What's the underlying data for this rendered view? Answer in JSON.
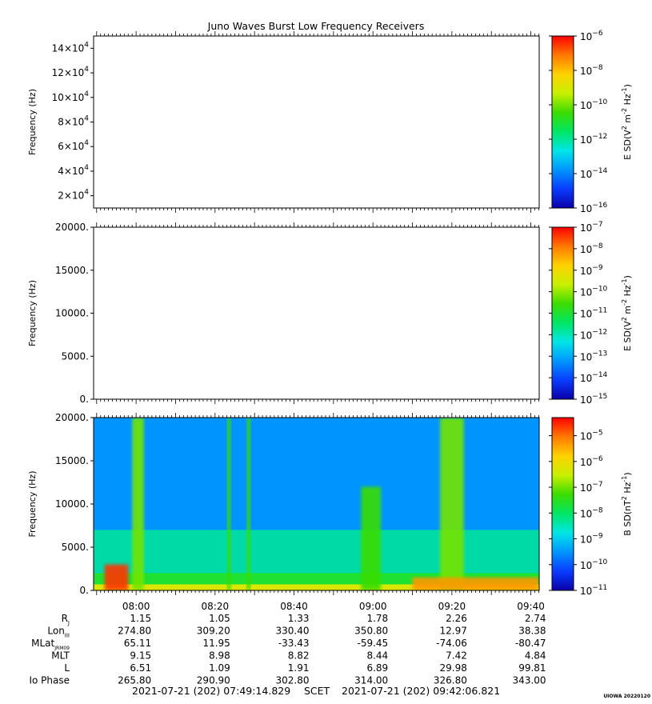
{
  "title": "Juno Waves Burst Low Frequency Receivers",
  "colors": {
    "colormap": [
      "#0a00a8",
      "#0a3cff",
      "#0096ff",
      "#00e6e6",
      "#00e664",
      "#3cdc00",
      "#c8f000",
      "#ffd200",
      "#ff7800",
      "#ff0000"
    ],
    "grid": "#000000"
  },
  "panels": [
    {
      "id": "panel-1",
      "type": "heatmap",
      "ylabel": "Frequency (Hz)",
      "yticks": [
        {
          "value": 20000,
          "mant": "2",
          "exp": "4"
        },
        {
          "value": 40000,
          "mant": "4",
          "exp": "4"
        },
        {
          "value": 60000,
          "mant": "6",
          "exp": "4"
        },
        {
          "value": 80000,
          "mant": "8",
          "exp": "4"
        },
        {
          "value": 100000,
          "mant": "10",
          "exp": "4"
        },
        {
          "value": 120000,
          "mant": "12",
          "exp": "4"
        },
        {
          "value": 140000,
          "mant": "14",
          "exp": "4"
        }
      ],
      "ylim": [
        10000,
        150000
      ],
      "data_present": false,
      "colorbar": {
        "label_base": "E SD",
        "units_html": "(V² m⁻² Hz⁻¹)",
        "scale": "log",
        "exp_range": [
          -16,
          -6
        ],
        "ticks": [
          -6,
          -8,
          -10,
          -12,
          -14,
          -16
        ]
      }
    },
    {
      "id": "panel-2",
      "type": "heatmap",
      "ylabel": "Frequency (Hz)",
      "yticks": [
        {
          "value": 0,
          "text": "0."
        },
        {
          "value": 5000,
          "text": "5000."
        },
        {
          "value": 10000,
          "text": "10000."
        },
        {
          "value": 15000,
          "text": "15000."
        },
        {
          "value": 20000,
          "text": "20000."
        }
      ],
      "ylim": [
        0,
        20000
      ],
      "data_present": false,
      "colorbar": {
        "label_base": "E SD",
        "scale": "log",
        "exp_range": [
          -15,
          -7
        ],
        "ticks": [
          -7,
          -8,
          -9,
          -10,
          -11,
          -12,
          -13,
          -14,
          -15
        ]
      }
    },
    {
      "id": "panel-3",
      "type": "heatmap",
      "ylabel": "Frequency (Hz)",
      "yticks": [
        {
          "value": 0,
          "text": "0."
        },
        {
          "value": 5000,
          "text": "5000."
        },
        {
          "value": 10000,
          "text": "10000."
        },
        {
          "value": 15000,
          "text": "15000."
        },
        {
          "value": 20000,
          "text": "20000."
        }
      ],
      "ylim": [
        0,
        20000
      ],
      "data_present": true,
      "background_level": 0.22,
      "noise_floor_hz": 7000,
      "intensifications": [
        {
          "start": "07:52",
          "end": "07:58",
          "level": 0.95,
          "fmax": 3000
        },
        {
          "start": "07:59",
          "end": "08:02",
          "level": 0.6,
          "fmax": 20000
        },
        {
          "start": "08:23",
          "end": "08:24",
          "level": 0.55,
          "fmax": 20000
        },
        {
          "start": "08:28",
          "end": "08:29",
          "level": 0.55,
          "fmax": 20000
        },
        {
          "start": "08:57",
          "end": "09:02",
          "level": 0.55,
          "fmax": 12000
        },
        {
          "start": "09:17",
          "end": "09:23",
          "level": 0.6,
          "fmax": 20000
        },
        {
          "start": "09:10",
          "end": "09:42",
          "level": 0.85,
          "fmax": 1500
        }
      ],
      "colorbar": {
        "label_base": "B SD",
        "scale": "log",
        "exp_range": [
          -11,
          -4.3
        ],
        "ticks": [
          -5,
          -6,
          -7,
          -8,
          -9,
          -10,
          -11
        ]
      }
    }
  ],
  "xaxis": {
    "start": "07:49:14",
    "end": "09:42:07",
    "ticks": [
      "08:00",
      "08:20",
      "08:40",
      "09:00",
      "09:20",
      "09:40"
    ]
  },
  "ephemeris": [
    {
      "label": "R",
      "sub": "J",
      "values": [
        "1.15",
        "1.05",
        "1.33",
        "1.78",
        "2.26",
        "2.74"
      ]
    },
    {
      "label": "Lon",
      "sub": "III",
      "values": [
        "274.80",
        "309.20",
        "330.40",
        "350.80",
        "12.97",
        "38.38"
      ]
    },
    {
      "label": "MLat",
      "sub": "JRM09",
      "values": [
        "65.11",
        "11.95",
        "-33.43",
        "-59.45",
        "-74.06",
        "-80.47"
      ]
    },
    {
      "label": "MLT",
      "sub": "",
      "values": [
        "9.15",
        "8.98",
        "8.82",
        "8.44",
        "7.42",
        "4.84"
      ]
    },
    {
      "label": "L",
      "sub": "",
      "values": [
        "6.51",
        "1.09",
        "1.91",
        "6.89",
        "29.98",
        "99.81"
      ]
    },
    {
      "label": "Io Phase",
      "sub": "",
      "values": [
        "265.80",
        "290.90",
        "302.80",
        "314.00",
        "326.80",
        "343.00"
      ]
    }
  ],
  "footer": {
    "start": "2021-07-21 (202) 07:49:14.829",
    "frame": "SCET",
    "end": "2021-07-21 (202) 09:42:06.821"
  },
  "credit": "UIOWA 20220120",
  "chart_data": [
    {
      "type": "heatmap",
      "title": "Juno Waves Burst Low Frequency Receivers",
      "ylabel": "Frequency (Hz)",
      "ylim": [
        10000,
        150000
      ],
      "x": [
        "08:00",
        "08:20",
        "08:40",
        "09:00",
        "09:20",
        "09:40"
      ],
      "values": "none",
      "colorbar_label": "E SD (V^2 m^-2 Hz^-1)",
      "colorbar_range": [
        "1e-16",
        "1e-6"
      ]
    },
    {
      "type": "heatmap",
      "ylabel": "Frequency (Hz)",
      "ylim": [
        0,
        20000
      ],
      "x": [
        "08:00",
        "08:20",
        "08:40",
        "09:00",
        "09:20",
        "09:40"
      ],
      "values": "none",
      "colorbar_label": "E SD (V^2 m^-2 Hz^-1)",
      "colorbar_range": [
        "1e-15",
        "1e-7"
      ]
    },
    {
      "type": "heatmap",
      "ylabel": "Frequency (Hz)",
      "ylim": [
        0,
        20000
      ],
      "x": [
        "08:00",
        "08:20",
        "08:40",
        "09:00",
        "09:20",
        "09:40"
      ],
      "colorbar_label": "B SD (nT^2 Hz^-1)",
      "colorbar_range": [
        "1e-11",
        "1e-4.3"
      ],
      "features": [
        {
          "time": "07:52-07:58",
          "freq_hz": "0-3000",
          "intensity": "high"
        },
        {
          "time": "07:59-08:02",
          "freq_hz": "0-20000",
          "intensity": "moderate"
        },
        {
          "time": "08:57-09:02",
          "freq_hz": "0-12000",
          "intensity": "moderate"
        },
        {
          "time": "09:17-09:23",
          "freq_hz": "0-20000",
          "intensity": "moderate"
        },
        {
          "time": "09:10-09:42",
          "freq_hz": "0-1500",
          "intensity": "high"
        }
      ]
    }
  ]
}
